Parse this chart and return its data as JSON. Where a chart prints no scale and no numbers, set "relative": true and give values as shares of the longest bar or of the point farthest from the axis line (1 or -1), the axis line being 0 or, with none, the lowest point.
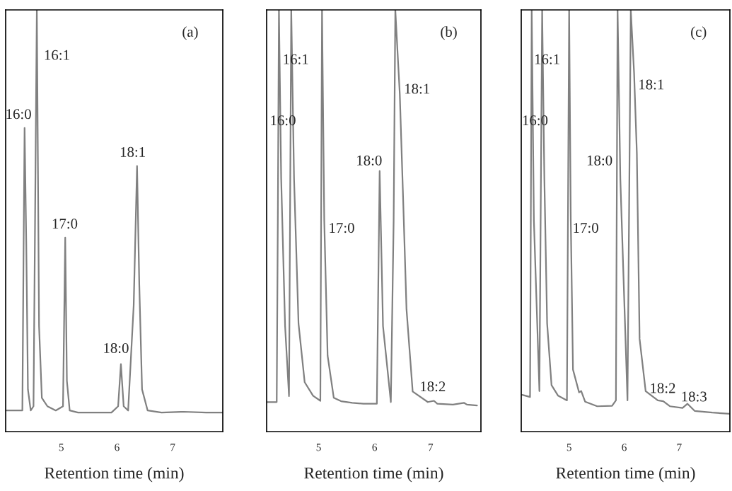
{
  "chart_data": [
    {
      "type": "line",
      "relative": true,
      "xlabel": "Retention time (min)",
      "xlim": [
        4.0,
        7.9
      ],
      "xticks": [
        5,
        6,
        7
      ],
      "tick_labels": "x",
      "grid": false,
      "legend": false,
      "series": [
        {
          "color": "#808080",
          "x": [
            4.0,
            4.2,
            4.3,
            4.32,
            4.34,
            4.37,
            4.4,
            4.45,
            4.5,
            4.56,
            4.6,
            4.65,
            4.75,
            4.9,
            5.03,
            5.07,
            5.1,
            5.15,
            5.3,
            5.6,
            5.9,
            6.02,
            6.07,
            6.12,
            6.2,
            6.3,
            6.36,
            6.4,
            6.45,
            6.55,
            6.8,
            7.2,
            7.6,
            7.9
          ],
          "values": [
            0.05,
            0.05,
            0.05,
            0.4,
            0.72,
            0.45,
            0.1,
            0.05,
            0.06,
            1.0,
            0.25,
            0.08,
            0.06,
            0.05,
            0.06,
            0.46,
            0.12,
            0.05,
            0.045,
            0.045,
            0.045,
            0.06,
            0.16,
            0.06,
            0.05,
            0.3,
            0.63,
            0.35,
            0.1,
            0.05,
            0.045,
            0.047,
            0.045,
            0.045
          ]
        }
      ],
      "annotations": [
        "16:0",
        "16:1",
        "17:0",
        "18:0",
        "18:1",
        "(a)"
      ]
    },
    {
      "type": "line",
      "relative": true,
      "xlabel": "Retention time (min)",
      "xlim": [
        4.07,
        7.9
      ],
      "xticks": [
        5,
        6,
        7
      ],
      "tick_labels": "x",
      "grid": false,
      "legend": false,
      "series": [
        {
          "color": "#808080",
          "x": [
            4.07,
            4.25,
            4.27,
            4.29,
            4.33,
            4.4,
            4.47,
            4.51,
            4.56,
            4.64,
            4.75,
            4.9,
            5.03,
            5.06,
            5.1,
            5.16,
            5.27,
            5.4,
            5.6,
            5.8,
            6.04,
            6.09,
            6.15,
            6.29,
            6.34,
            6.37,
            6.45,
            6.51,
            6.57,
            6.68,
            6.95,
            7.06,
            7.12,
            7.4,
            7.6,
            7.65,
            7.83
          ],
          "values": [
            0.07,
            0.07,
            0.5,
            1.0,
            0.6,
            0.25,
            0.084,
            1.0,
            0.6,
            0.256,
            0.117,
            0.085,
            0.073,
            1.0,
            0.5,
            0.18,
            0.08,
            0.072,
            0.068,
            0.066,
            0.066,
            0.618,
            0.25,
            0.07,
            0.5,
            1.0,
            0.8,
            0.55,
            0.29,
            0.095,
            0.07,
            0.073,
            0.066,
            0.064,
            0.068,
            0.064,
            0.062
          ]
        }
      ],
      "annotations": [
        "16:0",
        "16:1",
        "17:0",
        "18:0",
        "18:1",
        "18:2",
        "(b)"
      ]
    },
    {
      "type": "line",
      "relative": true,
      "xlabel": "Retention time (min)",
      "xlim": [
        4.13,
        7.92
      ],
      "xticks": [
        5,
        6,
        7
      ],
      "tick_labels": "x",
      "grid": false,
      "legend": false,
      "series": [
        {
          "color": "#808080",
          "x": [
            4.13,
            4.15,
            4.29,
            4.32,
            4.36,
            4.46,
            4.51,
            4.55,
            4.6,
            4.68,
            4.8,
            4.96,
            5.0,
            5.03,
            5.07,
            5.18,
            5.22,
            5.29,
            5.51,
            5.78,
            5.85,
            5.88,
            5.93,
            6.06,
            6.12,
            6.18,
            6.23,
            6.28,
            6.39,
            6.61,
            6.71,
            6.83,
            7.06,
            7.15,
            7.28,
            7.6,
            7.92
          ],
          "values": [
            0.087,
            0.087,
            0.082,
            1.0,
            0.5,
            0.096,
            1.0,
            0.6,
            0.257,
            0.11,
            0.085,
            0.074,
            1.0,
            0.5,
            0.147,
            0.093,
            0.096,
            0.071,
            0.06,
            0.061,
            0.074,
            1.0,
            0.6,
            0.074,
            1.0,
            0.85,
            0.66,
            0.22,
            0.096,
            0.074,
            0.072,
            0.06,
            0.056,
            0.066,
            0.049,
            0.045,
            0.042
          ]
        }
      ],
      "annotations": [
        "16:0",
        "16:1",
        "17:0",
        "18:0",
        "18:1",
        "18:2",
        "18:3",
        "(c)"
      ]
    }
  ]
}
